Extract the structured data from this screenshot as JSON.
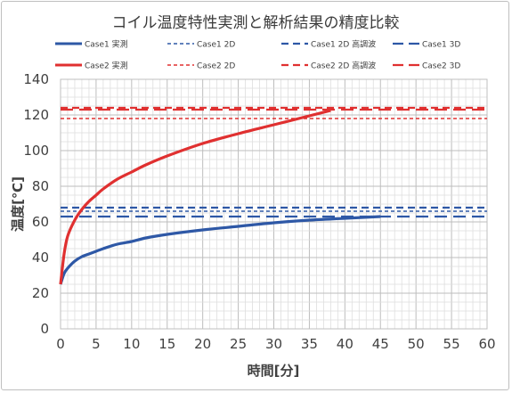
{
  "chart_data": {
    "type": "line",
    "title": "コイル温度特性実測と解析結果の精度比較",
    "xlabel": "時間[分]",
    "ylabel": "温度[℃]",
    "xlim": [
      0,
      60
    ],
    "ylim": [
      0,
      140
    ],
    "x_ticks": [
      0,
      5,
      10,
      15,
      20,
      25,
      30,
      35,
      40,
      45,
      50,
      55,
      60
    ],
    "y_ticks": [
      0,
      20,
      40,
      60,
      80,
      100,
      120,
      140
    ],
    "x_tick_labels": [
      "0",
      "5",
      "10",
      "15",
      "20",
      "25",
      "30",
      "35",
      "40",
      "45",
      "50",
      "55",
      "60"
    ],
    "y_tick_labels": [
      "0",
      "20",
      "40",
      "60",
      "80",
      "100",
      "120",
      "140"
    ],
    "grid": true,
    "legend_position": "top",
    "colors": {
      "case1": "#2e58a6",
      "case2": "#e03030",
      "grid": "#c8c8c8"
    },
    "series": [
      {
        "name": "Case1 実測",
        "group": "case1",
        "style": "solid",
        "x": [
          0,
          0.5,
          1,
          2,
          3,
          4,
          5,
          6,
          8,
          10,
          12,
          15,
          20,
          25,
          30,
          35,
          40,
          45
        ],
        "y": [
          25,
          31,
          34,
          38,
          40.5,
          42,
          43.5,
          45,
          47.5,
          49,
          51,
          53,
          55.5,
          57.5,
          59.5,
          61,
          62,
          63
        ]
      },
      {
        "name": "Case1 2D",
        "group": "case1",
        "style": "short-dash",
        "x": [
          0,
          60
        ],
        "y": [
          66,
          66
        ]
      },
      {
        "name": "Case1 2D 高調波",
        "group": "case1",
        "style": "dash",
        "x": [
          0,
          60
        ],
        "y": [
          68,
          68
        ]
      },
      {
        "name": "Case1 3D",
        "group": "case1",
        "style": "long-dash",
        "x": [
          0,
          60
        ],
        "y": [
          63,
          63
        ]
      },
      {
        "name": "Case2 実測",
        "group": "case2",
        "style": "solid",
        "x": [
          0,
          0.5,
          1,
          2,
          3,
          4,
          5,
          6,
          8,
          10,
          12,
          15,
          20,
          25,
          30,
          35,
          38
        ],
        "y": [
          25,
          42,
          52,
          61,
          67,
          71.5,
          75,
          78.5,
          84,
          88,
          92,
          97,
          104,
          109.5,
          114.5,
          119.5,
          122.5
        ]
      },
      {
        "name": "Case2 2D",
        "group": "case2",
        "style": "short-dash",
        "x": [
          0,
          60
        ],
        "y": [
          118,
          118
        ]
      },
      {
        "name": "Case2 2D 高調波",
        "group": "case2",
        "style": "dash",
        "x": [
          0,
          60
        ],
        "y": [
          124,
          124
        ]
      },
      {
        "name": "Case2 3D",
        "group": "case2",
        "style": "long-dash",
        "x": [
          0,
          60
        ],
        "y": [
          123,
          123
        ]
      }
    ]
  }
}
